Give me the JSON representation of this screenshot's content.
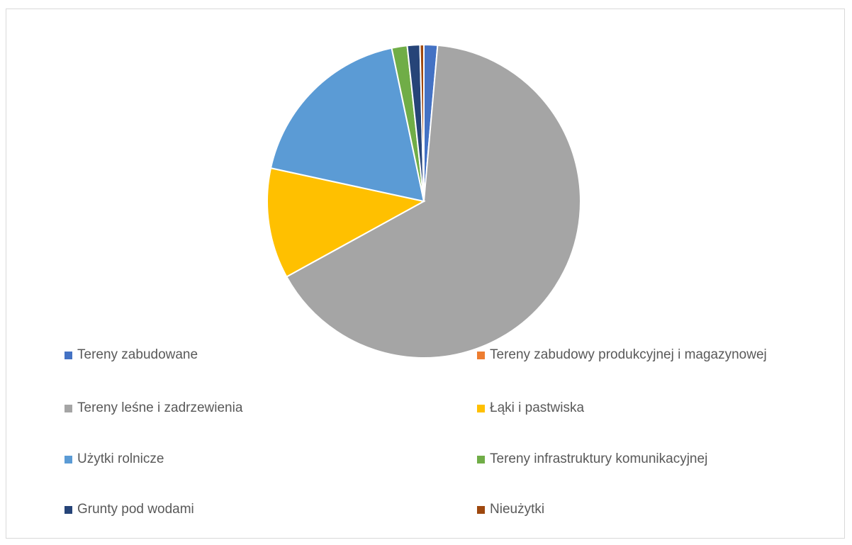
{
  "chart_data": {
    "type": "pie",
    "title": "",
    "slices": [
      {
        "label": "Tereny zabudowane",
        "value": 1.4,
        "color": "#4472c4"
      },
      {
        "label": "Tereny zabudowy produkcyjnej i magazynowej",
        "value": 0.0,
        "color": "#ed7d31"
      },
      {
        "label": "Tereny leśne i zadrzewienia",
        "value": 65.6,
        "color": "#a5a5a5"
      },
      {
        "label": "Łąki i pastwiska",
        "value": 11.4,
        "color": "#ffc000"
      },
      {
        "label": "Użytki rolnicze",
        "value": 18.3,
        "color": "#5b9bd5"
      },
      {
        "label": "Tereny infrastruktury komunikacyjnej",
        "value": 1.6,
        "color": "#70ad47"
      },
      {
        "label": "Grunty pod wodami",
        "value": 1.3,
        "color": "#264478"
      },
      {
        "label": "Nieużytki",
        "value": 0.4,
        "color": "#9e480e"
      }
    ],
    "legend_position": "bottom",
    "legend_columns": 2
  }
}
